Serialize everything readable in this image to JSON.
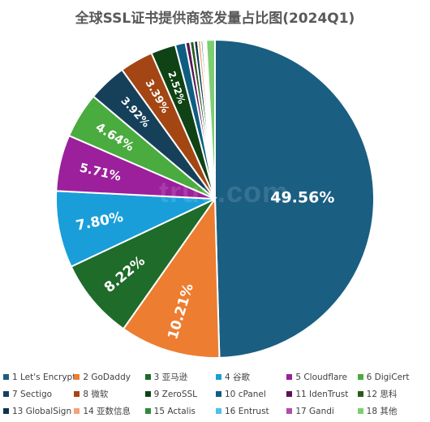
{
  "chart_data": {
    "type": "pie",
    "title": "全球SSL证书提供商签发量占比图(2024Q1)",
    "watermark": "trus.com",
    "categories": [
      "Let's Encrypt",
      "GoDaddy",
      "亚马逊",
      "谷歌",
      "Cloudflare",
      "DigiCert",
      "Sectigo",
      "微软",
      "ZeroSSL",
      "cPanel",
      "IdenTrust",
      "思科",
      "GlobalSign",
      "亚数信息",
      "Actalis",
      "Entrust",
      "Gandi",
      "其他"
    ],
    "legend_labels": [
      "1 Let's Encrypt",
      "2 GoDaddy",
      "3 亚马逊",
      "4 谷歌",
      "5 Cloudflare",
      "6 DigiCert",
      "7 Sectigo",
      "8 微软",
      "9 ZeroSSL",
      "10 cPanel",
      "11 IdenTrust",
      "12 思科",
      "13 GlobalSign",
      "14 亚数信息",
      "15 Actalis",
      "16 Entrust",
      "17 Gandi",
      "18 其他"
    ],
    "values": [
      49.56,
      10.21,
      8.22,
      7.8,
      5.71,
      4.64,
      3.92,
      3.39,
      2.52,
      1.05,
      0.45,
      0.42,
      0.38,
      0.3,
      0.22,
      0.18,
      0.15,
      0.88
    ],
    "data_labels": [
      "49.56%",
      "10.21%",
      "8.22%",
      "7.80%",
      "5.71%",
      "4.64%",
      "3.92%",
      "3.39%",
      "2.52%",
      "",
      "",
      "",
      "",
      "",
      "",
      "",
      "",
      ""
    ],
    "colors": [
      "#1a5e82",
      "#ed7d31",
      "#1e6b2a",
      "#199ed9",
      "#9c1f9c",
      "#4aab3f",
      "#16405a",
      "#a34614",
      "#0f4214",
      "#0d5e82",
      "#5a1455",
      "#2a5a1a",
      "#0a3550",
      "#f4a27a",
      "#2e8b3c",
      "#4ec0ee",
      "#b04db0",
      "#7dce72"
    ],
    "legend_position": "bottom"
  }
}
